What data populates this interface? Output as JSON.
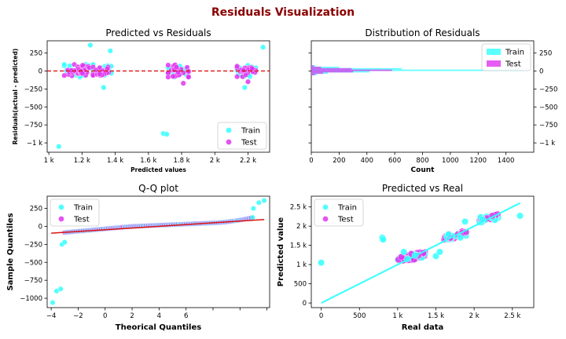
{
  "figure": {
    "title": "Residuals Visualization",
    "title_color": "#8b0000"
  },
  "colors": {
    "train": "#33ffff",
    "test": "#e034f0",
    "zero_line": "#e01010",
    "fit_line": "#e01010"
  },
  "chart_data": [
    {
      "id": "pred_vs_resid",
      "type": "scatter",
      "title": "Predicted vs Residuals",
      "xlabel": "Predicted values",
      "ylabel": "Residuals(actual - predicted)",
      "xlim": [
        990,
        2330
      ],
      "ylim": [
        -1130,
        420
      ],
      "xticks": [
        1000,
        1200,
        1400,
        1600,
        1800,
        2000,
        2200
      ],
      "xticklabels": [
        "1 k",
        "1.2 k",
        "1.4 k",
        "1.6 k",
        "1.8 k",
        "2 k",
        "2.2 k"
      ],
      "yticks": [
        250,
        0,
        -250,
        -500,
        -750,
        -1000
      ],
      "yticklabels": [
        "250",
        "0",
        "−250",
        "−500",
        "−750",
        "−1 k"
      ],
      "reference_line": {
        "y": 0,
        "style": "dashed"
      },
      "legend": {
        "position": "lower-right",
        "entries": [
          "Train",
          "Test"
        ]
      },
      "clusters": [
        {
          "x_center": 1180,
          "x_spread": 85,
          "y_spread": 75,
          "train_count": 55,
          "test_count": 45
        },
        {
          "x_center": 1330,
          "x_spread": 45,
          "y_spread": 65,
          "train_count": 30,
          "test_count": 22
        },
        {
          "x_center": 1780,
          "x_spread": 60,
          "y_spread": 70,
          "train_count": 38,
          "test_count": 30
        },
        {
          "x_center": 2190,
          "x_spread": 55,
          "y_spread": 65,
          "train_count": 32,
          "test_count": 24
        }
      ],
      "train_outliers": [
        [
          1060,
          -1050
        ],
        [
          1690,
          -870
        ],
        [
          1710,
          -880
        ],
        [
          1250,
          360
        ],
        [
          2290,
          330
        ],
        [
          1330,
          -230
        ],
        [
          2180,
          -230
        ],
        [
          1370,
          280
        ]
      ],
      "test_outliers": [
        [
          1810,
          -170
        ],
        [
          2200,
          -150
        ]
      ]
    },
    {
      "id": "resid_distribution",
      "type": "histogram",
      "title": "Distribution of Residuals",
      "xlabel": "Count",
      "ylabel": "",
      "xlim": [
        0,
        1600
      ],
      "ylim": [
        -1130,
        420
      ],
      "xticks": [
        0,
        200,
        400,
        600,
        800,
        1000,
        1200,
        1400
      ],
      "xticklabels": [
        "0",
        "200",
        "400",
        "600",
        "800",
        "1000",
        "1200",
        "1400"
      ],
      "yticks": [
        250,
        0,
        -250,
        -500,
        -750,
        -1000
      ],
      "yticklabels": [
        "250",
        "0",
        "−250",
        "−500",
        "−750",
        "−1 k"
      ],
      "legend": {
        "position": "upper-right",
        "entries": [
          "Train",
          "Test"
        ]
      },
      "bins": [
        -60,
        -40,
        -20,
        0,
        20,
        40,
        60
      ],
      "train_counts": [
        40,
        120,
        420,
        1520,
        650,
        200,
        30
      ],
      "test_counts": [
        25,
        85,
        300,
        580,
        290,
        70,
        15
      ]
    },
    {
      "id": "qq_plot",
      "type": "scatter",
      "title": "Q-Q plot",
      "xlabel": "Theorical Quantiles",
      "ylabel": "Sample Quantiles",
      "xlim": [
        -4.3,
        12.2
      ],
      "ylim": [
        -1130,
        420
      ],
      "xticks": [
        -4,
        -2,
        0,
        2,
        4,
        6,
        8,
        10,
        12
      ],
      "xticklabels": [
        "−4",
        "−2",
        "0",
        "2",
        "4",
        "6",
        "",
        "",
        ""
      ],
      "yticks": [
        250,
        0,
        -250,
        -500,
        -750,
        -1000
      ],
      "yticklabels": [
        "250",
        "0",
        "−250",
        "−500",
        "−750",
        "−1000"
      ],
      "legend": {
        "position": "upper-left",
        "entries": [
          "Train",
          "Test"
        ]
      },
      "fit_line": [
        [
          -4,
          -95
        ],
        [
          11.8,
          95
        ]
      ],
      "train_outliers": [
        [
          -3.9,
          -1060
        ],
        [
          -3.6,
          -900
        ],
        [
          -3.3,
          -870
        ],
        [
          -3.2,
          -250
        ],
        [
          -3.0,
          -220
        ],
        [
          11.0,
          250
        ],
        [
          11.4,
          330
        ],
        [
          11.8,
          360
        ]
      ]
    },
    {
      "id": "pred_vs_real",
      "type": "scatter",
      "title": "Predicted vs Real",
      "xlabel": "Real data",
      "ylabel": "Predicted value",
      "xlim": [
        -130,
        2780
      ],
      "ylim": [
        -120,
        2780
      ],
      "xticks": [
        0,
        500,
        1000,
        1500,
        2000,
        2500
      ],
      "xticklabels": [
        "0",
        "500",
        "1 k",
        "1.5 k",
        "2 k",
        "2.5 k"
      ],
      "yticks": [
        0,
        500,
        1000,
        1500,
        2000,
        2500
      ],
      "yticklabels": [
        "0",
        "500",
        "1 k",
        "1.5 k",
        "2 k",
        "2.5 k"
      ],
      "legend": {
        "position": "upper-left",
        "entries": [
          "Train",
          "Test"
        ]
      },
      "fit_line": [
        [
          0,
          0
        ],
        [
          2600,
          2600
        ]
      ],
      "clusters": [
        {
          "x_from": 1000,
          "x_to": 1360,
          "y_center": 1200,
          "count": 60
        },
        {
          "x_from": 1600,
          "x_to": 1900,
          "y_center": 1750,
          "count": 40
        },
        {
          "x_from": 2050,
          "x_to": 2320,
          "y_center": 2200,
          "count": 45
        }
      ],
      "train_outliers": [
        [
          0,
          1050
        ],
        [
          800,
          1700
        ],
        [
          810,
          1650
        ],
        [
          2600,
          2270
        ],
        [
          1500,
          1220
        ],
        [
          1550,
          1330
        ],
        [
          1880,
          2120
        ],
        [
          1080,
          1330
        ]
      ]
    }
  ]
}
